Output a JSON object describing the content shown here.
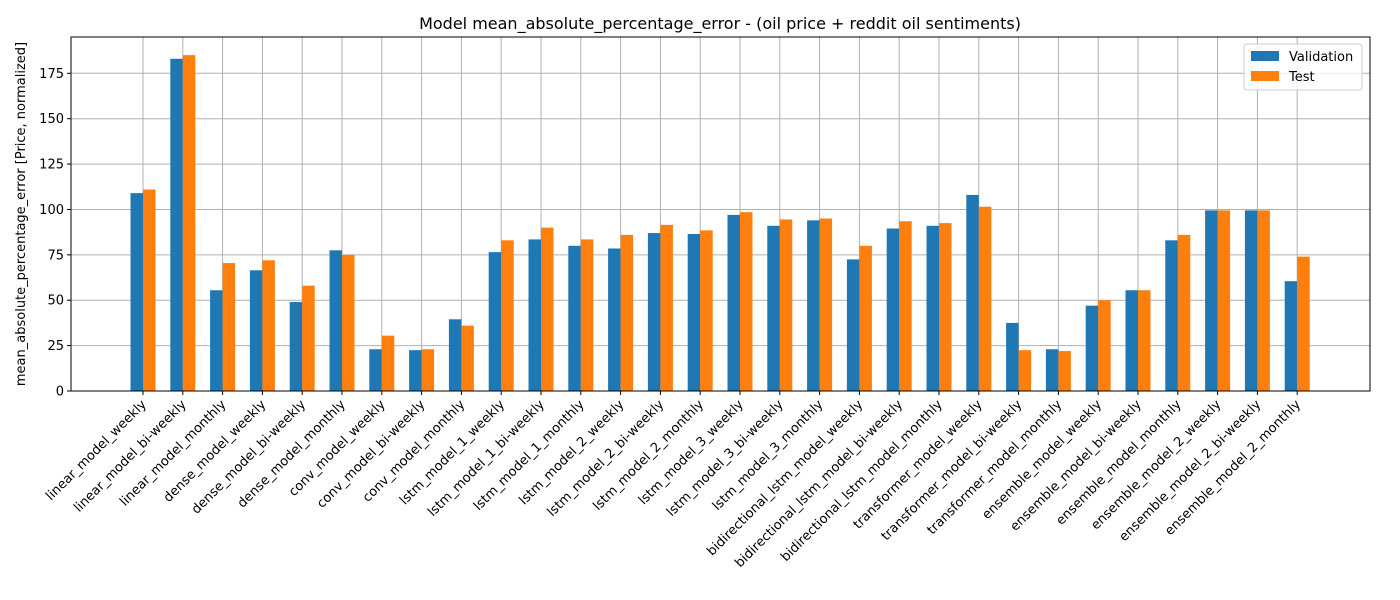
{
  "chart_data": {
    "type": "bar",
    "title": "Model mean_absolute_percentage_error - (oil price + reddit oil sentiments)",
    "xlabel": "",
    "ylabel": "mean_absolute_percentage_error [Price, normalized]",
    "ylim": [
      0,
      195
    ],
    "yticks": [
      0,
      25,
      50,
      75,
      100,
      125,
      150,
      175
    ],
    "grid": true,
    "legend_position": "top-right",
    "categories": [
      "linear_model_weekly",
      "linear_model_bi-weekly",
      "linear_model_monthly",
      "dense_model_weekly",
      "dense_model_bi-weekly",
      "dense_model_monthly",
      "conv_model_weekly",
      "conv_model_bi-weekly",
      "conv_model_monthly",
      "lstm_model_1_weekly",
      "lstm_model_1_bi-weekly",
      "lstm_model_1_monthly",
      "lstm_model_2_weekly",
      "lstm_model_2_bi-weekly",
      "lstm_model_2_monthly",
      "lstm_model_3_weekly",
      "lstm_model_3_bi-weekly",
      "lstm_model_3_monthly",
      "bidirectional_lstm_model_weekly",
      "bidirectional_lstm_model_bi-weekly",
      "bidirectional_lstm_model_monthly",
      "transformer_model_weekly",
      "transformer_model_bi-weekly",
      "transformer_model_monthly",
      "ensemble_model_weekly",
      "ensemble_model_bi-weekly",
      "ensemble_model_monthly",
      "ensemble_model_2_weekly",
      "ensemble_model_2_bi-weekly",
      "ensemble_model_2_monthly"
    ],
    "series": [
      {
        "name": "Validation",
        "color": "#1f77b4",
        "values": [
          109,
          183,
          55.5,
          66.5,
          49,
          77.5,
          23,
          22.5,
          39.5,
          76.5,
          83.5,
          80,
          78.5,
          87,
          86.5,
          97,
          91,
          94,
          72.5,
          89.5,
          91,
          108,
          37.5,
          23,
          47,
          55.5,
          83,
          99.5,
          99.5,
          60.5
        ]
      },
      {
        "name": "Test",
        "color": "#ff7f0e",
        "values": [
          111,
          185,
          70.5,
          72,
          58,
          75,
          30.5,
          23,
          36,
          83,
          90,
          83.5,
          86,
          91.5,
          88.5,
          98.5,
          94.5,
          95,
          80,
          93.5,
          92.5,
          101.5,
          22.5,
          22,
          50,
          55.5,
          86,
          99.5,
          99.5,
          74
        ]
      }
    ]
  }
}
